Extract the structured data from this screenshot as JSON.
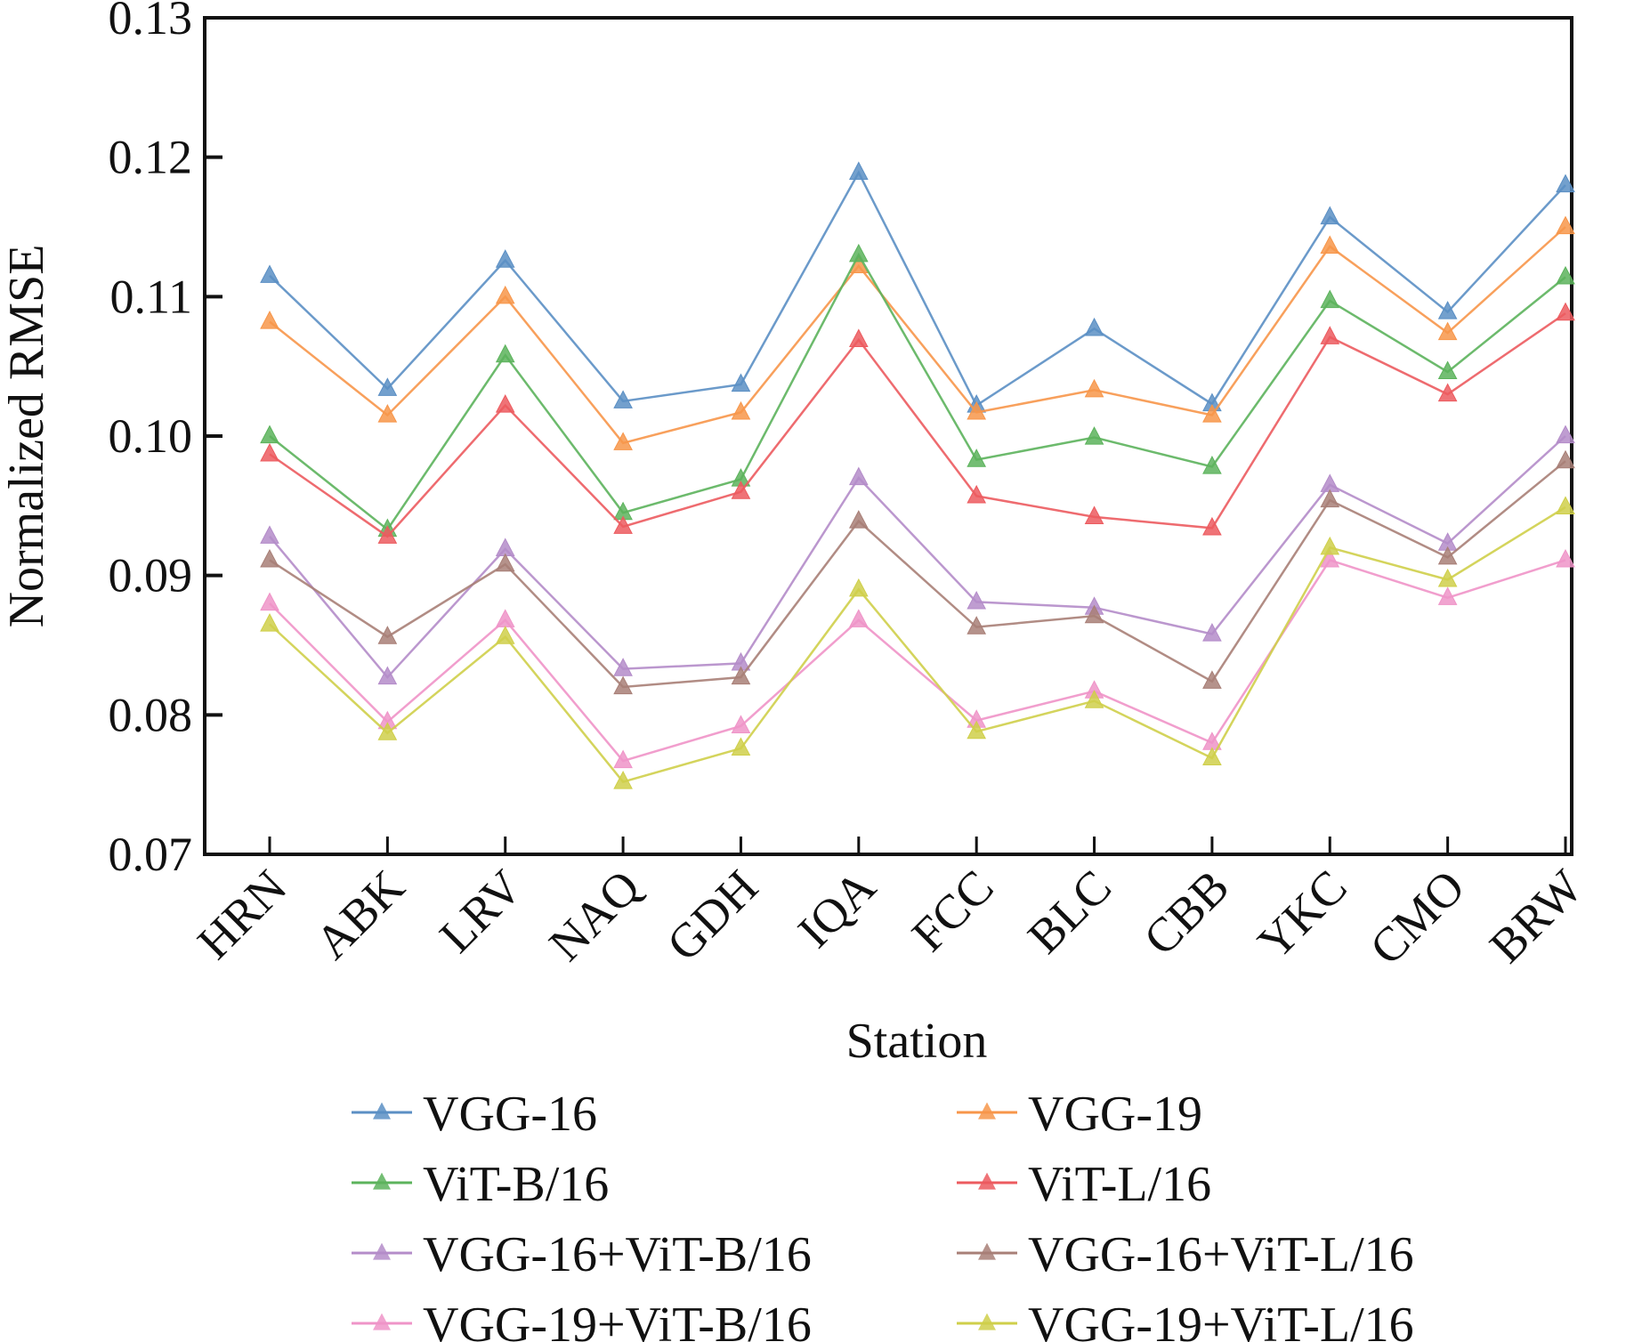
{
  "chart_data": {
    "type": "line",
    "title": "",
    "xlabel": "Station",
    "ylabel": "Normalized RMSE",
    "ylim": [
      0.07,
      0.13
    ],
    "yticks": [
      "0.07",
      "0.08",
      "0.09",
      "0.10",
      "0.11",
      "0.12",
      "0.13"
    ],
    "ytick_values": [
      0.07,
      0.08,
      0.09,
      0.1,
      0.11,
      0.12,
      0.13
    ],
    "grid": false,
    "legend_position": "bottom",
    "legend_columns": 2,
    "marker": "triangle",
    "categories": [
      "HRN",
      "ABK",
      "LRV",
      "NAQ",
      "GDH",
      "IQA",
      "FCC",
      "BLC",
      "CBB",
      "YKC",
      "CMO",
      "BRW"
    ],
    "series": [
      {
        "name": "VGG-16",
        "color": "#5b8fc4",
        "values": [
          0.1115,
          0.1034,
          0.1126,
          0.1025,
          0.1037,
          0.1189,
          0.1022,
          0.1077,
          0.1023,
          0.1157,
          0.1089,
          0.118
        ]
      },
      {
        "name": "VGG-19",
        "color": "#f7964a",
        "values": [
          0.1082,
          0.1015,
          0.11,
          0.0995,
          0.1017,
          0.1122,
          0.1017,
          0.1033,
          0.1015,
          0.1136,
          0.1074,
          0.115
        ]
      },
      {
        "name": "ViT-B/16",
        "color": "#5cb35c",
        "values": [
          0.1,
          0.0933,
          0.1058,
          0.0945,
          0.0969,
          0.113,
          0.0983,
          0.0999,
          0.0978,
          0.1097,
          0.1046,
          0.1114
        ]
      },
      {
        "name": "ViT-L/16",
        "color": "#ec5b5f",
        "values": [
          0.0987,
          0.0928,
          0.1022,
          0.0935,
          0.096,
          0.1069,
          0.0957,
          0.0942,
          0.0934,
          0.1071,
          0.103,
          0.1088
        ]
      },
      {
        "name": "VGG-16+ViT-B/16",
        "color": "#b48cc9",
        "values": [
          0.0928,
          0.0827,
          0.0919,
          0.0833,
          0.0837,
          0.097,
          0.0881,
          0.0877,
          0.0858,
          0.0965,
          0.0923,
          0.1
        ]
      },
      {
        "name": "VGG-16+ViT-L/16",
        "color": "#a87f77",
        "values": [
          0.0911,
          0.0856,
          0.0908,
          0.082,
          0.0827,
          0.0939,
          0.0863,
          0.0871,
          0.0824,
          0.0954,
          0.0913,
          0.0982
        ]
      },
      {
        "name": "VGG-19+ViT-B/16",
        "color": "#ef94c8",
        "values": [
          0.088,
          0.0795,
          0.0868,
          0.0767,
          0.0792,
          0.0868,
          0.0796,
          0.0817,
          0.078,
          0.0911,
          0.0884,
          0.0911
        ]
      },
      {
        "name": "VGG-19+ViT-L/16",
        "color": "#cfcf4a",
        "values": [
          0.0865,
          0.0787,
          0.0856,
          0.0752,
          0.0776,
          0.089,
          0.0788,
          0.081,
          0.0769,
          0.092,
          0.0897,
          0.0949
        ]
      }
    ]
  }
}
